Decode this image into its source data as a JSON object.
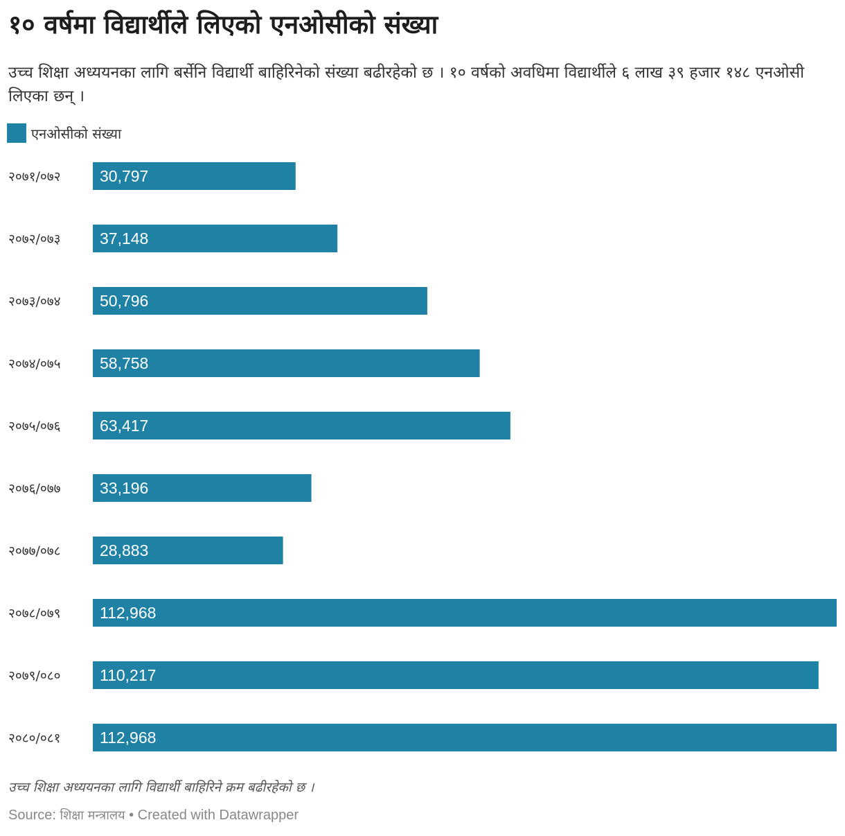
{
  "header": {
    "title": "१० वर्षमा विद्यार्थीले लिएको एनओसीको संख्या",
    "subtitle": "उच्च शिक्षा अध्ययनका लागि बर्सेनि विद्यार्थी बाहिरिनेको संख्या बढीरहेको छ । १० वर्षको अवधिमा विद्यार्थीले ६ लाख ३९ हजार १४८ एनओसी लिएका छन् ।"
  },
  "legend": {
    "label": "एनओसीको संख्या",
    "color": "#1f82a4"
  },
  "chart_data": {
    "type": "bar",
    "orientation": "horizontal",
    "categories": [
      "२०७१/०७२",
      "२०७२/०७३",
      "२०७३/०७४",
      "२०७४/०७५",
      "२०७५/०७६",
      "२०७६/०७७",
      "२०७७/०७८",
      "२०७८/०७९",
      "२०७९/०८०",
      "२०८०/०८१"
    ],
    "series": [
      {
        "name": "एनओसीको संख्या",
        "values": [
          30797,
          37148,
          50796,
          58758,
          63417,
          33196,
          28883,
          112968,
          110217,
          112968
        ],
        "labels": [
          "30,797",
          "37,148",
          "50,796",
          "58,758",
          "63,417",
          "33,196",
          "28,883",
          "112,968",
          "110,217",
          "112,968"
        ]
      }
    ],
    "title": "१० वर्षमा विद्यार्थीले लिएको एनओसीको संख्या",
    "xlabel": "",
    "ylabel": "",
    "xlim": [
      0,
      112968
    ],
    "grid": false,
    "bar_color": "#1f82a4"
  },
  "footer": {
    "note": "उच्च शिक्षा अध्ययनका लागि विद्यार्थी बाहिरिने क्रम बढीरहेको छ ।",
    "source_prefix": "Source: ",
    "source_name": "शिक्षा मन्त्रालय",
    "source_suffix": " • Created with Datawrapper"
  }
}
